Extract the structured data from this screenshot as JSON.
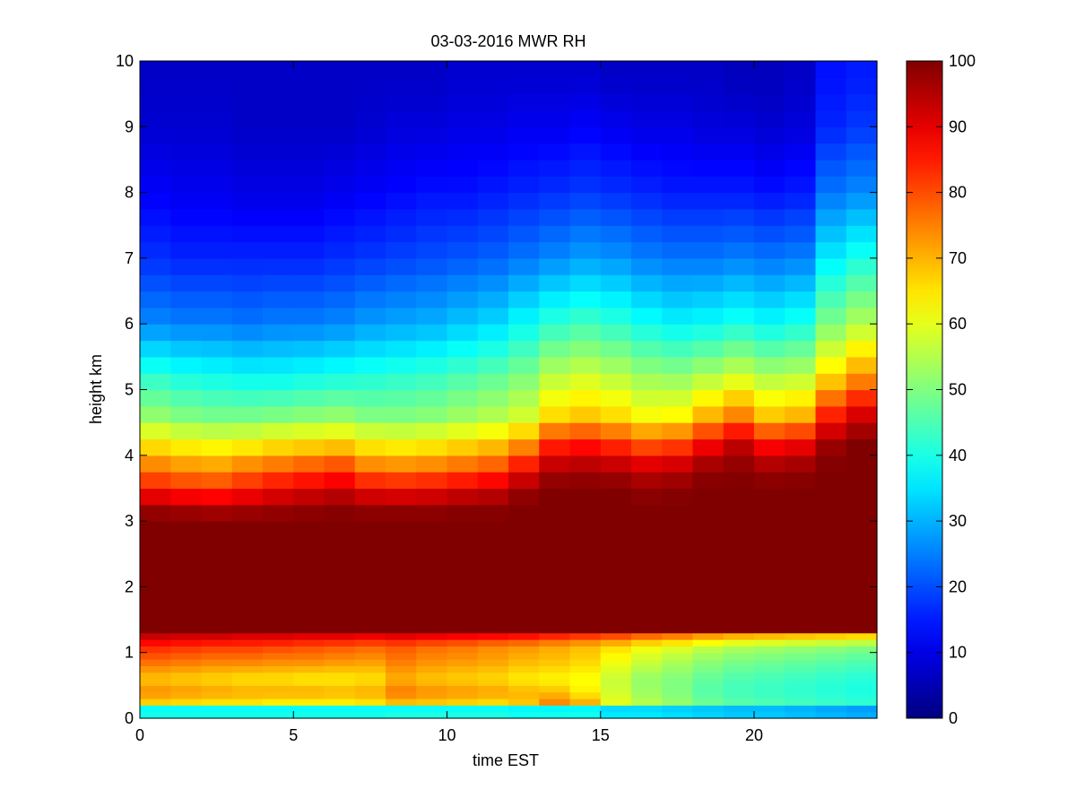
{
  "chart_data": {
    "type": "heatmap",
    "title": "03-03-2016 MWR RH",
    "xlabel": "time EST",
    "ylabel": "height km",
    "xlim": [
      0,
      24
    ],
    "ylim": [
      0,
      10
    ],
    "x_ticks": [
      "0",
      "5",
      "10",
      "15",
      "20"
    ],
    "y_ticks": [
      "0",
      "1",
      "2",
      "3",
      "4",
      "5",
      "6",
      "7",
      "8",
      "9",
      "10"
    ],
    "colormap": "jet",
    "colorbar": {
      "limits": [
        0,
        100
      ],
      "ticks": [
        "0",
        "10",
        "20",
        "30",
        "40",
        "50",
        "60",
        "70",
        "80",
        "90",
        "100"
      ]
    },
    "grid": false,
    "time_hours": [
      0,
      1,
      2,
      3,
      4,
      5,
      6,
      7,
      8,
      9,
      10,
      11,
      12,
      13,
      14,
      15,
      16,
      17,
      18,
      19,
      20,
      21,
      22,
      23
    ],
    "cell_width_hours": 1.0,
    "height_levels_km": [
      0.0,
      0.1,
      0.2,
      0.3,
      0.4,
      0.5,
      0.6,
      0.7,
      0.8,
      0.9,
      1.0,
      1.1,
      1.2,
      1.3,
      1.5,
      1.75,
      2.0,
      2.25,
      2.5,
      2.75,
      3.0,
      3.25,
      3.5,
      3.75,
      4.0,
      4.25,
      4.5,
      4.75,
      5.0,
      5.25,
      5.5,
      5.75,
      6.0,
      6.25,
      6.5,
      6.75,
      7.0,
      7.25,
      7.5,
      7.75,
      8.0,
      8.25,
      8.5,
      8.75,
      9.0,
      9.25,
      9.5,
      9.75
    ],
    "profile_heights_km": [
      0.0,
      0.15,
      0.25,
      0.4,
      0.6,
      0.9,
      1.1,
      1.25,
      1.3,
      1.5,
      3.0,
      3.2,
      3.5,
      3.8,
      4.2,
      4.6,
      5.2,
      6.0,
      7.0,
      8.0,
      9.0,
      9.75
    ],
    "rh_profiles_percent": [
      [
        40,
        38,
        67,
        74,
        68,
        78,
        84,
        93,
        100,
        100,
        100,
        97,
        85,
        76,
        64,
        52,
        42,
        26,
        17,
        12,
        8,
        7
      ],
      [
        40,
        38,
        66,
        73,
        67,
        77,
        83,
        92,
        100,
        100,
        100,
        96,
        83,
        74,
        62,
        50,
        40,
        25,
        16,
        11,
        8,
        7
      ],
      [
        40,
        38,
        65,
        72,
        66,
        76,
        82,
        92,
        100,
        100,
        100,
        95,
        82,
        73,
        61,
        49,
        39,
        25,
        16,
        11,
        8,
        7
      ],
      [
        40,
        38,
        65,
        71,
        65,
        76,
        82,
        91,
        100,
        100,
        100,
        96,
        85,
        76,
        62,
        49,
        38,
        24,
        16,
        10,
        7,
        7
      ],
      [
        40,
        38,
        64,
        71,
        65,
        75,
        81,
        91,
        100,
        100,
        100,
        97,
        88,
        78,
        64,
        50,
        38,
        25,
        16,
        10,
        7,
        7
      ],
      [
        40,
        38,
        64,
        71,
        64,
        75,
        80,
        90,
        100,
        100,
        100,
        98,
        90,
        80,
        65,
        51,
        39,
        25,
        16,
        10,
        7,
        7
      ],
      [
        40,
        38,
        64,
        70,
        64,
        74,
        79,
        90,
        100,
        100,
        100,
        99,
        92,
        82,
        66,
        52,
        40,
        26,
        17,
        11,
        7,
        7
      ],
      [
        40,
        38,
        65,
        71,
        65,
        73,
        78,
        89,
        100,
        100,
        100,
        98,
        88,
        76,
        63,
        50,
        41,
        28,
        18,
        12,
        8,
        7
      ],
      [
        41,
        38,
        69,
        76,
        70,
        76,
        79,
        90,
        100,
        100,
        100,
        98,
        87,
        75,
        62,
        50,
        42,
        29,
        19,
        13,
        9,
        7
      ],
      [
        41,
        38,
        68,
        74,
        68,
        74,
        77,
        89,
        100,
        100,
        100,
        98,
        88,
        76,
        63,
        51,
        43,
        30,
        20,
        14,
        9,
        7
      ],
      [
        41,
        38,
        67,
        73,
        67,
        73,
        76,
        88,
        100,
        100,
        100,
        99,
        90,
        78,
        65,
        53,
        45,
        32,
        21,
        14,
        10,
        8
      ],
      [
        41,
        38,
        66,
        72,
        66,
        72,
        74,
        87,
        100,
        100,
        100,
        99,
        92,
        80,
        67,
        55,
        47,
        34,
        22,
        15,
        10,
        8
      ],
      [
        40,
        37,
        68,
        70,
        64,
        70,
        73,
        86,
        100,
        100,
        100,
        100,
        97,
        87,
        72,
        58,
        50,
        38,
        24,
        16,
        11,
        8
      ],
      [
        40,
        37,
        74,
        69,
        63,
        69,
        71,
        84,
        100,
        100,
        100,
        100,
        100,
        95,
        83,
        66,
        56,
        42,
        26,
        17,
        11,
        8
      ],
      [
        40,
        37,
        70,
        64,
        62,
        67,
        69,
        82,
        100,
        100,
        100,
        100,
        100,
        96,
        85,
        68,
        58,
        44,
        28,
        18,
        12,
        8
      ],
      [
        36,
        34,
        60,
        58,
        57,
        62,
        66,
        80,
        100,
        100,
        100,
        100,
        100,
        95,
        82,
        66,
        56,
        42,
        27,
        17,
        11,
        7
      ],
      [
        36,
        34,
        55,
        53,
        52,
        58,
        62,
        77,
        100,
        100,
        100,
        100,
        98,
        93,
        78,
        62,
        53,
        39,
        25,
        16,
        10,
        7
      ],
      [
        35,
        33,
        52,
        50,
        50,
        55,
        60,
        75,
        100,
        100,
        100,
        100,
        99,
        94,
        80,
        63,
        52,
        37,
        24,
        15,
        10,
        7
      ],
      [
        34,
        32,
        48,
        46,
        47,
        52,
        57,
        72,
        100,
        100,
        100,
        100,
        100,
        98,
        87,
        70,
        55,
        38,
        24,
        15,
        9,
        7
      ],
      [
        33,
        31,
        46,
        44,
        45,
        50,
        55,
        70,
        100,
        100,
        100,
        100,
        100,
        99,
        93,
        75,
        58,
        40,
        25,
        15,
        9,
        6
      ],
      [
        33,
        31,
        45,
        43,
        44,
        49,
        54,
        69,
        100,
        100,
        100,
        100,
        100,
        97,
        86,
        68,
        55,
        38,
        24,
        14,
        8,
        6
      ],
      [
        32,
        30,
        44,
        42,
        43,
        48,
        53,
        68,
        100,
        100,
        100,
        100,
        100,
        98,
        88,
        70,
        56,
        40,
        25,
        15,
        9,
        7
      ],
      [
        31,
        29,
        43,
        41,
        42,
        47,
        52,
        67,
        100,
        100,
        100,
        100,
        100,
        100,
        97,
        85,
        66,
        50,
        36,
        24,
        16,
        14
      ],
      [
        30,
        28,
        42,
        40,
        41,
        46,
        51,
        66,
        100,
        100,
        100,
        100,
        100,
        100,
        100,
        92,
        73,
        55,
        40,
        26,
        18,
        15
      ]
    ]
  }
}
